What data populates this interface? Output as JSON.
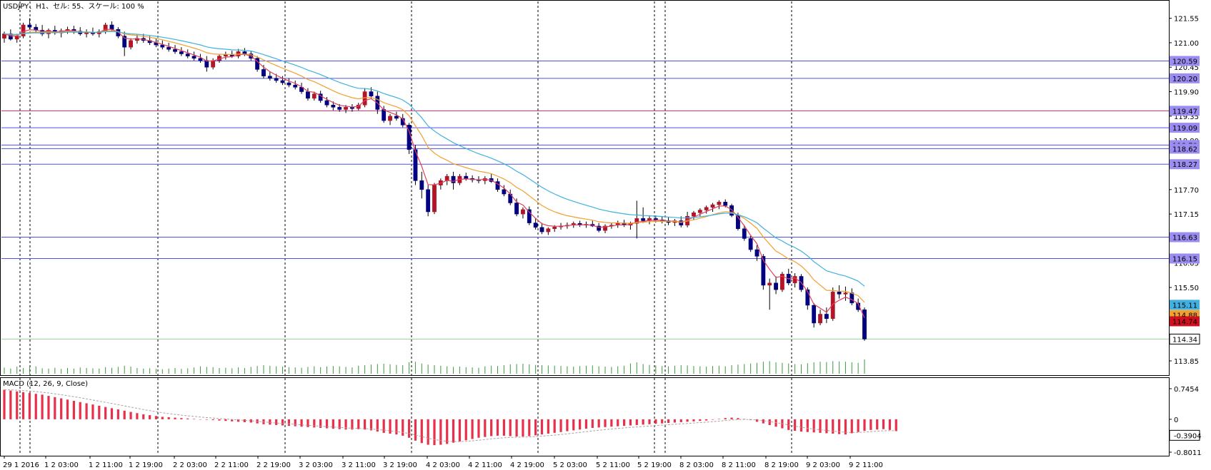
{
  "header": {
    "title": "USDJPY、H1、セル: 55、スケール: 100 %"
  },
  "macd_panel": {
    "label": "MACD (12, 26, 9, Close)"
  },
  "colors": {
    "bull_candle": "#000080",
    "bear_candle": "#b41428",
    "horizontal_line": "#5050e6",
    "horizontal_tag": "#9a8cf0",
    "ma_fast": "#e0405a",
    "ma_mid": "#f0a030",
    "ma_slow": "#40b0e0",
    "volume": "#3a9a3a",
    "macd_hist": "#e8304a",
    "macd_signal": "#b4a0a0",
    "grid_vertical": "#000000",
    "price_tag_red": "#d0101e",
    "price_tag_orange": "#f0a030",
    "price_tag_cyan": "#40b0e0"
  },
  "chart_data": {
    "type": "candlestick",
    "symbol": "USDJPY",
    "timeframe": "H1",
    "y_axis_ticks": [
      "121.55",
      "121.00",
      "120.45",
      "119.90",
      "119.35",
      "118.80",
      "118.27",
      "117.70",
      "117.15",
      "116.63",
      "116.05",
      "115.50",
      "114.88",
      "114.34",
      "113.85"
    ],
    "ylim": [
      113.85,
      121.8
    ],
    "x_axis_ticks": [
      "29 1 2016",
      "1 2 03:00",
      "1 2 11:00",
      "1 2 19:00",
      "2 2 03:00",
      "2 2 11:00",
      "2 2 19:00",
      "3 2 03:00",
      "3 2 11:00",
      "3 2 19:00",
      "4 2 03:00",
      "4 2 11:00",
      "4 2 19:00",
      "5 2 03:00",
      "5 2 11:00",
      "5 2 19:00",
      "8 2 03:00",
      "8 2 11:00",
      "8 2 19:00",
      "9 2 03:00",
      "9 2 11:00"
    ],
    "horizontal_levels": [
      "120.59",
      "120.20",
      "119.47",
      "119.09",
      "118.70",
      "118.62",
      "118.27",
      "116.63",
      "116.15"
    ],
    "current_price_tags": [
      {
        "label": "115.11",
        "color": "cyan"
      },
      {
        "label": "114.88",
        "color": "orange"
      },
      {
        "label": "114.74",
        "color": "red"
      },
      {
        "label": "114.34",
        "color": "current"
      }
    ],
    "ohlc": [
      [
        121.1,
        121.25,
        121.0,
        121.2
      ],
      [
        121.2,
        121.3,
        121.05,
        121.08
      ],
      [
        121.08,
        121.2,
        121.0,
        121.15
      ],
      [
        121.15,
        121.45,
        121.1,
        121.4
      ],
      [
        121.4,
        121.55,
        121.3,
        121.35
      ],
      [
        121.35,
        121.42,
        121.22,
        121.28
      ],
      [
        121.28,
        121.4,
        121.15,
        121.2
      ],
      [
        121.2,
        121.32,
        121.1,
        121.28
      ],
      [
        121.28,
        121.38,
        121.18,
        121.22
      ],
      [
        121.22,
        121.32,
        121.12,
        121.27
      ],
      [
        121.27,
        121.36,
        121.2,
        121.3
      ],
      [
        121.3,
        121.38,
        121.2,
        121.26
      ],
      [
        121.26,
        121.35,
        121.16,
        121.2
      ],
      [
        121.2,
        121.3,
        121.12,
        121.24
      ],
      [
        121.24,
        121.34,
        121.16,
        121.2
      ],
      [
        121.2,
        121.3,
        121.12,
        121.25
      ],
      [
        121.25,
        121.45,
        121.2,
        121.4
      ],
      [
        121.4,
        121.48,
        121.25,
        121.3
      ],
      [
        121.3,
        121.35,
        121.1,
        121.15
      ],
      [
        121.15,
        121.25,
        120.7,
        120.9
      ],
      [
        120.9,
        121.1,
        120.85,
        121.05
      ],
      [
        121.05,
        121.18,
        120.98,
        121.1
      ],
      [
        121.1,
        121.2,
        121.0,
        121.05
      ],
      [
        121.05,
        121.15,
        120.95,
        121.0
      ],
      [
        121.0,
        121.1,
        120.9,
        120.95
      ],
      [
        120.95,
        121.05,
        120.85,
        120.9
      ],
      [
        120.9,
        121.0,
        120.8,
        120.85
      ],
      [
        120.85,
        120.95,
        120.75,
        120.8
      ],
      [
        120.8,
        120.9,
        120.7,
        120.75
      ],
      [
        120.75,
        120.85,
        120.65,
        120.7
      ],
      [
        120.7,
        120.8,
        120.6,
        120.65
      ],
      [
        120.65,
        120.75,
        120.55,
        120.6
      ],
      [
        120.6,
        120.7,
        120.35,
        120.45
      ],
      [
        120.45,
        120.65,
        120.4,
        120.6
      ],
      [
        120.6,
        120.75,
        120.55,
        120.7
      ],
      [
        120.7,
        120.8,
        120.62,
        120.74
      ],
      [
        120.74,
        120.82,
        120.66,
        120.7
      ],
      [
        120.7,
        120.86,
        120.65,
        120.8
      ],
      [
        120.8,
        120.88,
        120.7,
        120.75
      ],
      [
        120.75,
        120.82,
        120.6,
        120.65
      ],
      [
        120.65,
        120.7,
        120.35,
        120.4
      ],
      [
        120.4,
        120.5,
        120.2,
        120.25
      ],
      [
        120.25,
        120.35,
        120.15,
        120.2
      ],
      [
        120.2,
        120.3,
        120.1,
        120.15
      ],
      [
        120.15,
        120.25,
        120.05,
        120.1
      ],
      [
        120.1,
        120.2,
        120.0,
        120.05
      ],
      [
        120.05,
        120.15,
        119.95,
        120.0
      ],
      [
        120.0,
        120.1,
        119.85,
        119.9
      ],
      [
        119.9,
        119.98,
        119.7,
        119.75
      ],
      [
        119.75,
        119.9,
        119.7,
        119.85
      ],
      [
        119.85,
        119.92,
        119.65,
        119.7
      ],
      [
        119.7,
        119.78,
        119.55,
        119.6
      ],
      [
        119.6,
        119.68,
        119.48,
        119.55
      ],
      [
        119.55,
        119.62,
        119.45,
        119.5
      ],
      [
        119.5,
        119.6,
        119.42,
        119.55
      ],
      [
        119.55,
        119.62,
        119.45,
        119.52
      ],
      [
        119.52,
        119.65,
        119.48,
        119.6
      ],
      [
        119.6,
        119.98,
        119.55,
        119.9
      ],
      [
        119.9,
        120.0,
        119.75,
        119.8
      ],
      [
        119.8,
        119.9,
        119.4,
        119.5
      ],
      [
        119.5,
        119.58,
        119.2,
        119.25
      ],
      [
        119.25,
        119.4,
        119.15,
        119.35
      ],
      [
        119.35,
        119.45,
        119.25,
        119.3
      ],
      [
        119.3,
        119.4,
        119.1,
        119.15
      ],
      [
        119.15,
        119.2,
        118.5,
        118.6
      ],
      [
        118.6,
        118.7,
        117.8,
        117.9
      ],
      [
        117.9,
        118.1,
        117.5,
        117.7
      ],
      [
        117.7,
        117.8,
        117.1,
        117.2
      ],
      [
        117.2,
        117.85,
        117.15,
        117.8
      ],
      [
        117.8,
        117.95,
        117.7,
        117.9
      ],
      [
        117.9,
        118.05,
        117.8,
        118.0
      ],
      [
        118.0,
        118.1,
        117.7,
        117.85
      ],
      [
        117.85,
        118.05,
        117.8,
        118.0
      ],
      [
        118.0,
        118.08,
        117.9,
        117.95
      ],
      [
        117.95,
        118.02,
        117.86,
        117.92
      ],
      [
        117.92,
        118.0,
        117.84,
        117.9
      ],
      [
        117.9,
        118.0,
        117.82,
        117.95
      ],
      [
        117.95,
        118.05,
        117.85,
        117.88
      ],
      [
        117.88,
        117.95,
        117.65,
        117.7
      ],
      [
        117.7,
        117.8,
        117.55,
        117.6
      ],
      [
        117.6,
        117.7,
        117.35,
        117.4
      ],
      [
        117.4,
        117.5,
        117.1,
        117.15
      ],
      [
        117.15,
        117.3,
        117.05,
        117.25
      ],
      [
        117.25,
        117.32,
        116.9,
        116.95
      ],
      [
        116.95,
        117.05,
        116.8,
        116.85
      ],
      [
        116.85,
        116.95,
        116.7,
        116.75
      ],
      [
        116.75,
        116.85,
        116.68,
        116.82
      ],
      [
        116.82,
        116.9,
        116.75,
        116.86
      ],
      [
        116.86,
        116.95,
        116.8,
        116.88
      ],
      [
        116.88,
        116.96,
        116.82,
        116.9
      ],
      [
        116.9,
        116.98,
        116.84,
        116.94
      ],
      [
        116.94,
        117.0,
        116.86,
        116.9
      ],
      [
        116.9,
        116.98,
        116.84,
        116.92
      ],
      [
        116.92,
        117.0,
        116.86,
        116.88
      ],
      [
        116.88,
        116.95,
        116.74,
        116.78
      ],
      [
        116.78,
        116.92,
        116.72,
        116.88
      ],
      [
        116.88,
        116.96,
        116.82,
        116.9
      ],
      [
        116.9,
        117.0,
        116.84,
        116.95
      ],
      [
        116.95,
        117.02,
        116.86,
        116.9
      ],
      [
        116.9,
        116.98,
        116.8,
        116.94
      ],
      [
        116.94,
        117.45,
        116.6,
        117.05
      ],
      [
        117.05,
        117.3,
        116.95,
        117.0
      ],
      [
        117.0,
        117.1,
        116.92,
        117.05
      ],
      [
        117.05,
        117.12,
        116.96,
        117.02
      ],
      [
        117.02,
        117.1,
        116.94,
        117.0
      ],
      [
        117.0,
        117.08,
        116.9,
        116.96
      ],
      [
        116.96,
        117.04,
        116.88,
        117.0
      ],
      [
        117.0,
        117.1,
        116.85,
        116.9
      ],
      [
        116.9,
        117.2,
        116.85,
        117.1
      ],
      [
        117.1,
        117.22,
        117.02,
        117.18
      ],
      [
        117.18,
        117.28,
        117.1,
        117.24
      ],
      [
        117.24,
        117.34,
        117.16,
        117.3
      ],
      [
        117.3,
        117.4,
        117.2,
        117.36
      ],
      [
        117.36,
        117.46,
        117.26,
        117.42
      ],
      [
        117.42,
        117.48,
        117.3,
        117.34
      ],
      [
        117.34,
        117.38,
        117.08,
        117.12
      ],
      [
        117.12,
        117.18,
        116.78,
        116.82
      ],
      [
        116.82,
        116.9,
        116.55,
        116.6
      ],
      [
        116.6,
        116.68,
        116.3,
        116.35
      ],
      [
        116.35,
        116.45,
        116.1,
        116.2
      ],
      [
        116.2,
        116.25,
        115.45,
        115.55
      ],
      [
        115.55,
        115.7,
        115.0,
        115.6
      ],
      [
        115.6,
        115.75,
        115.35,
        115.45
      ],
      [
        115.45,
        115.85,
        115.4,
        115.8
      ],
      [
        115.8,
        115.92,
        115.55,
        115.6
      ],
      [
        115.6,
        115.82,
        115.5,
        115.75
      ],
      [
        115.75,
        115.8,
        115.4,
        115.45
      ],
      [
        115.45,
        115.5,
        115.0,
        115.1
      ],
      [
        115.1,
        115.15,
        114.6,
        114.7
      ],
      [
        114.7,
        115.0,
        114.65,
        114.9
      ],
      [
        114.9,
        115.05,
        114.7,
        114.8
      ],
      [
        114.8,
        115.5,
        114.75,
        115.4
      ],
      [
        115.4,
        115.55,
        115.25,
        115.35
      ],
      [
        115.35,
        115.52,
        115.2,
        115.38
      ],
      [
        115.38,
        115.48,
        115.1,
        115.15
      ],
      [
        115.15,
        115.25,
        114.95,
        115.0
      ],
      [
        115.0,
        115.05,
        114.3,
        114.34
      ]
    ],
    "volume": [
      22,
      18,
      25,
      20,
      24,
      26,
      19,
      18,
      21,
      17,
      20,
      18,
      22,
      20,
      19,
      18,
      23,
      21,
      24,
      28,
      25,
      20,
      18,
      19,
      17,
      16,
      18,
      20,
      17,
      19,
      22,
      26,
      24,
      23,
      20,
      21,
      19,
      22,
      20,
      24,
      27,
      30,
      28,
      26,
      25,
      23,
      22,
      21,
      24,
      26,
      23,
      25,
      27,
      26,
      24,
      22,
      28,
      30,
      32,
      34,
      35,
      33,
      31,
      30,
      40,
      42,
      36,
      32,
      30,
      28,
      26,
      24,
      25,
      23,
      22,
      21,
      26,
      28,
      27,
      30,
      33,
      34,
      35,
      33,
      31,
      30,
      29,
      28,
      27,
      26,
      25,
      27,
      28,
      29,
      26,
      25,
      24,
      26,
      28,
      36,
      40,
      34,
      31,
      29,
      27,
      26,
      28,
      30,
      29,
      27,
      26,
      25,
      27,
      28,
      26,
      30,
      32,
      34,
      36,
      38,
      42,
      44,
      40,
      38,
      36,
      34,
      33,
      37,
      40,
      42,
      41,
      44,
      43,
      42,
      40,
      38,
      50
    ],
    "macd": [
      0.72,
      0.7,
      0.68,
      0.66,
      0.64,
      0.62,
      0.6,
      0.57,
      0.54,
      0.51,
      0.48,
      0.45,
      0.42,
      0.39,
      0.36,
      0.33,
      0.3,
      0.27,
      0.24,
      0.21,
      0.18,
      0.15,
      0.12,
      0.1,
      0.08,
      0.06,
      0.05,
      0.04,
      0.03,
      0.02,
      0.01,
      0.0,
      -0.01,
      -0.02,
      -0.03,
      -0.04,
      -0.05,
      -0.06,
      -0.07,
      -0.08,
      -0.1,
      -0.12,
      -0.13,
      -0.14,
      -0.15,
      -0.16,
      -0.17,
      -0.18,
      -0.19,
      -0.2,
      -0.21,
      -0.22,
      -0.23,
      -0.24,
      -0.25,
      -0.25,
      -0.24,
      -0.25,
      -0.27,
      -0.3,
      -0.33,
      -0.35,
      -0.37,
      -0.4,
      -0.45,
      -0.52,
      -0.58,
      -0.62,
      -0.63,
      -0.62,
      -0.6,
      -0.57,
      -0.54,
      -0.51,
      -0.48,
      -0.45,
      -0.43,
      -0.41,
      -0.4,
      -0.4,
      -0.41,
      -0.42,
      -0.42,
      -0.41,
      -0.39,
      -0.37,
      -0.35,
      -0.33,
      -0.31,
      -0.29,
      -0.27,
      -0.25,
      -0.23,
      -0.21,
      -0.2,
      -0.19,
      -0.18,
      -0.17,
      -0.16,
      -0.15,
      -0.14,
      -0.13,
      -0.12,
      -0.11,
      -0.1,
      -0.09,
      -0.08,
      -0.07,
      -0.06,
      -0.05,
      -0.04,
      -0.03,
      -0.01,
      0.01,
      0.03,
      0.04,
      0.03,
      0.01,
      -0.02,
      -0.06,
      -0.1,
      -0.14,
      -0.18,
      -0.22,
      -0.26,
      -0.28,
      -0.3,
      -0.31,
      -0.32,
      -0.33,
      -0.34,
      -0.35,
      -0.36,
      -0.37,
      -0.34,
      -0.31,
      -0.28,
      -0.26,
      -0.25,
      -0.24,
      -0.26,
      -0.29
    ],
    "macd_axis_ticks": [
      "0.7454",
      "0",
      "-0.3904",
      "-0.8011"
    ],
    "macd_ylim": [
      -0.8011,
      0.7454
    ]
  }
}
